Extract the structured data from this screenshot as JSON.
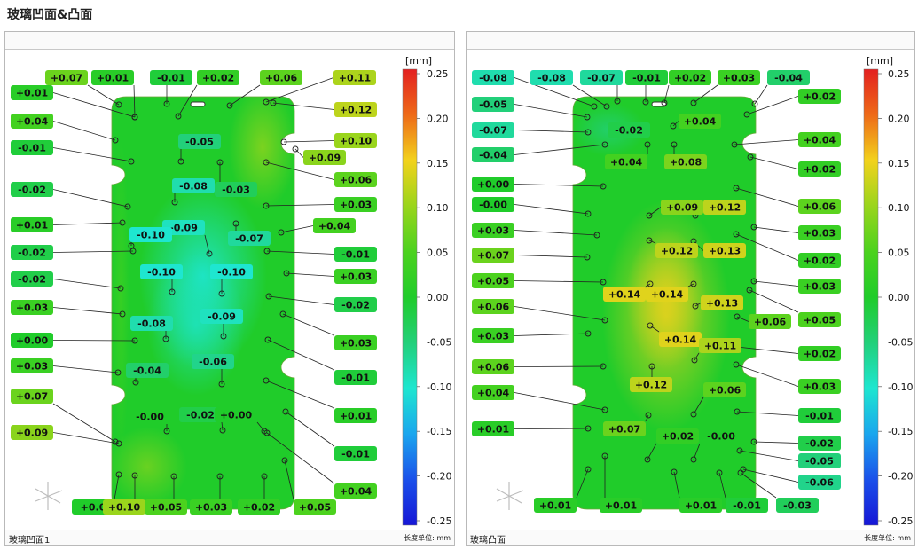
{
  "page_title": "玻璃凹面&凸面",
  "scale_unit": "[mm]",
  "scale_ticks": [
    "0.25",
    "0.20",
    "0.15",
    "0.10",
    "0.05",
    "0.00",
    "-0.05",
    "-0.10",
    "-0.15",
    "-0.20",
    "-0.25"
  ],
  "colors": {
    "plus25": "#e32020",
    "plus20": "#ee6a18",
    "plus15": "#f2d21c",
    "plus10": "#9ad51c",
    "plus05": "#4cd21e",
    "zero": "#20cc2a",
    "minus05": "#22d07a",
    "minus10": "#1ee6d0",
    "minus15": "#1aa6ee",
    "minus20": "#1a50ea",
    "minus25": "#1616d6"
  },
  "panels": [
    {
      "id": "concave",
      "file_label": "玻璃凹面1",
      "unit_label": "长度单位: mm",
      "labels": [
        {
          "t": "+0.07",
          "v": 0.07
        },
        {
          "t": "+0.01",
          "v": 0.01
        },
        {
          "t": "-0.01",
          "v": -0.01
        },
        {
          "t": "+0.02",
          "v": 0.02
        },
        {
          "t": "+0.06",
          "v": 0.06
        },
        {
          "t": "+0.11",
          "v": 0.11
        },
        {
          "t": "+0.01",
          "v": 0.01
        },
        {
          "t": "+0.12",
          "v": 0.12
        },
        {
          "t": "+0.04",
          "v": 0.04
        },
        {
          "t": "+0.10",
          "v": 0.1
        },
        {
          "t": "-0.01",
          "v": -0.01
        },
        {
          "t": "+0.09",
          "v": 0.09
        },
        {
          "t": "-0.05",
          "v": -0.05
        },
        {
          "t": "+0.06",
          "v": 0.06
        },
        {
          "t": "-0.02",
          "v": -0.02
        },
        {
          "t": "-0.08",
          "v": -0.08
        },
        {
          "t": "-0.03",
          "v": -0.03
        },
        {
          "t": "+0.03",
          "v": 0.03
        },
        {
          "t": "+0.01",
          "v": 0.01
        },
        {
          "t": "-0.09",
          "v": -0.09
        },
        {
          "t": "-0.10",
          "v": -0.1
        },
        {
          "t": "-0.07",
          "v": -0.07
        },
        {
          "t": "+0.04",
          "v": 0.04
        },
        {
          "t": "-0.02",
          "v": -0.02
        },
        {
          "t": "-0.01",
          "v": -0.01
        },
        {
          "t": "-0.02",
          "v": -0.02
        },
        {
          "t": "-0.10",
          "v": -0.1
        },
        {
          "t": "-0.10",
          "v": -0.1
        },
        {
          "t": "+0.03",
          "v": 0.03
        },
        {
          "t": "+0.03",
          "v": 0.03
        },
        {
          "t": "-0.02",
          "v": -0.02
        },
        {
          "t": "-0.09",
          "v": -0.09
        },
        {
          "t": "-0.08",
          "v": -0.08
        },
        {
          "t": "+0.00",
          "v": 0.0
        },
        {
          "t": "+0.03",
          "v": 0.03
        },
        {
          "t": "+0.03",
          "v": 0.03
        },
        {
          "t": "-0.06",
          "v": -0.06
        },
        {
          "t": "-0.04",
          "v": -0.04
        },
        {
          "t": "-0.01",
          "v": -0.01
        },
        {
          "t": "+0.07",
          "v": 0.07
        },
        {
          "t": "+0.01",
          "v": 0.01
        },
        {
          "t": "-0.00",
          "v": -0.0
        },
        {
          "t": "-0.02",
          "v": -0.02
        },
        {
          "t": "+0.00",
          "v": 0.0
        },
        {
          "t": "+0.09",
          "v": 0.09
        },
        {
          "t": "-0.01",
          "v": -0.01
        },
        {
          "t": "+0.04",
          "v": 0.04
        },
        {
          "t": "+0.0",
          "v": 0.0
        },
        {
          "t": "+0.10",
          "v": 0.1
        },
        {
          "t": "+0.05",
          "v": 0.05
        },
        {
          "t": "+0.03",
          "v": 0.03
        },
        {
          "t": "+0.02",
          "v": 0.02
        },
        {
          "t": "+0.05",
          "v": 0.05
        }
      ]
    },
    {
      "id": "convex",
      "file_label": "玻璃凸面",
      "unit_label": "长度单位: mm",
      "labels": [
        {
          "t": "-0.08",
          "v": -0.08
        },
        {
          "t": "-0.08",
          "v": -0.08
        },
        {
          "t": "-0.07",
          "v": -0.07
        },
        {
          "t": "-0.01",
          "v": -0.01
        },
        {
          "t": "+0.02",
          "v": 0.02
        },
        {
          "t": "+0.03",
          "v": 0.03
        },
        {
          "t": "-0.04",
          "v": -0.04
        },
        {
          "t": "-0.05",
          "v": -0.05
        },
        {
          "t": "+0.02",
          "v": 0.02
        },
        {
          "t": "-0.07",
          "v": -0.07
        },
        {
          "t": "-0.02",
          "v": -0.02
        },
        {
          "t": "+0.04",
          "v": 0.04
        },
        {
          "t": "+0.04",
          "v": 0.04
        },
        {
          "t": "-0.04",
          "v": -0.04
        },
        {
          "t": "+0.04",
          "v": 0.04
        },
        {
          "t": "+0.08",
          "v": 0.08
        },
        {
          "t": "+0.02",
          "v": 0.02
        },
        {
          "t": "+0.00",
          "v": 0.0
        },
        {
          "t": "+0.09",
          "v": 0.09
        },
        {
          "t": "+0.12",
          "v": 0.12
        },
        {
          "t": "-0.00",
          "v": -0.0
        },
        {
          "t": "+0.06",
          "v": 0.06
        },
        {
          "t": "+0.03",
          "v": 0.03
        },
        {
          "t": "+0.03",
          "v": 0.03
        },
        {
          "t": "+0.12",
          "v": 0.12
        },
        {
          "t": "+0.13",
          "v": 0.13
        },
        {
          "t": "+0.02",
          "v": 0.02
        },
        {
          "t": "+0.07",
          "v": 0.07
        },
        {
          "t": "+0.05",
          "v": 0.05
        },
        {
          "t": "+0.03",
          "v": 0.03
        },
        {
          "t": "+0.14",
          "v": 0.14
        },
        {
          "t": "+0.14",
          "v": 0.14
        },
        {
          "t": "+0.13",
          "v": 0.13
        },
        {
          "t": "+0.06",
          "v": 0.06
        },
        {
          "t": "+0.05",
          "v": 0.05
        },
        {
          "t": "+0.06",
          "v": 0.06
        },
        {
          "t": "+0.03",
          "v": 0.03
        },
        {
          "t": "+0.14",
          "v": 0.14
        },
        {
          "t": "+0.11",
          "v": 0.11
        },
        {
          "t": "+0.02",
          "v": 0.02
        },
        {
          "t": "+0.06",
          "v": 0.06
        },
        {
          "t": "+0.03",
          "v": 0.03
        },
        {
          "t": "+0.12",
          "v": 0.12
        },
        {
          "t": "+0.04",
          "v": 0.04
        },
        {
          "t": "+0.06",
          "v": 0.06
        },
        {
          "t": "-0.01",
          "v": -0.01
        },
        {
          "t": "+0.01",
          "v": 0.01
        },
        {
          "t": "+0.07",
          "v": 0.07
        },
        {
          "t": "+0.02",
          "v": 0.02
        },
        {
          "t": "-0.00",
          "v": -0.0
        },
        {
          "t": "-0.02",
          "v": -0.02
        },
        {
          "t": "-0.05",
          "v": -0.05
        },
        {
          "t": "-0.06",
          "v": -0.06
        },
        {
          "t": "+0.01",
          "v": 0.01
        },
        {
          "t": "+0.01",
          "v": 0.01
        },
        {
          "t": "+0.01",
          "v": 0.01
        },
        {
          "t": "-0.01",
          "v": -0.01
        },
        {
          "t": "-0.03",
          "v": -0.03
        }
      ]
    }
  ]
}
